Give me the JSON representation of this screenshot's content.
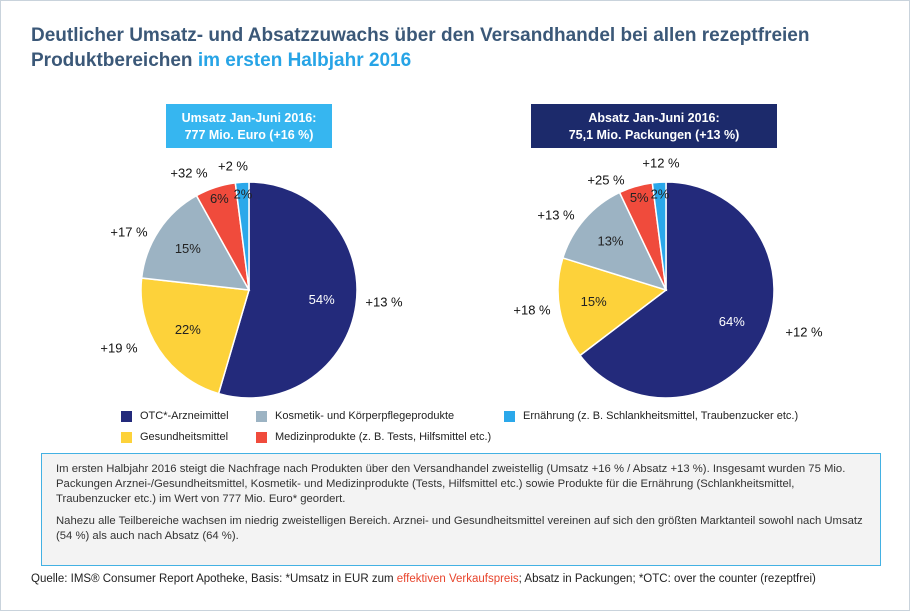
{
  "header": {
    "title": "Deutlicher Umsatz- und Absatzzuwachs über den Versandhandel bei allen rezeptfreien Produktbereichen",
    "title_highlight": "im ersten Halbjahr 2016"
  },
  "chart_data": [
    {
      "type": "pie",
      "title": "Umsatz Jan-Juni 2016:",
      "subtitle": "777 Mio. Euro (+16 %)",
      "categories": [
        "OTC*-Arzneimittel",
        "Gesundheitsmittel",
        "Kosmetik- und Körperpflegeprodukte",
        "Medizinprodukte (z. B. Tests, Hilfsmittel etc.)",
        "Ernährung (z. B. Schlankheitsmittel, Traubenzucker etc.)"
      ],
      "values": [
        54,
        22,
        15,
        6,
        2
      ],
      "value_labels": [
        "54%",
        "22%",
        "15%",
        "6%",
        "2%"
      ],
      "annotations": [
        "+13 %",
        "+19 %",
        "+17 %",
        "+32 %",
        "+2 %"
      ],
      "colors": [
        "#232a7b",
        "#fdd23a",
        "#9cb3c3",
        "#f04b3c",
        "#2ba8ea"
      ],
      "header_color": "#36b6f0"
    },
    {
      "type": "pie",
      "title": "Absatz Jan-Juni 2016:",
      "subtitle": "75,1 Mio. Packungen (+13 %)",
      "categories": [
        "OTC*-Arzneimittel",
        "Gesundheitsmittel",
        "Kosmetik- und Körperpflegeprodukte",
        "Medizinprodukte (z. B. Tests, Hilfsmittel etc.)",
        "Ernährung (z. B. Schlankheitsmittel, Traubenzucker etc.)"
      ],
      "values": [
        64,
        15,
        13,
        5,
        2
      ],
      "value_labels": [
        "64%",
        "15%",
        "13%",
        "5%",
        "2%"
      ],
      "annotations": [
        "+12 %",
        "+18 %",
        "+13 %",
        "+25 %",
        "+12 %"
      ],
      "colors": [
        "#232a7b",
        "#fdd23a",
        "#9cb3c3",
        "#f04b3c",
        "#2ba8ea"
      ],
      "header_color": "#1c2a6b"
    }
  ],
  "note": {
    "paragraphs": [
      "Im ersten Halbjahr 2016 steigt die Nachfrage nach Produkten über den Versandhandel zweistellig (Umsatz +16 % / Absatz +13 %). Insgesamt wurden 75 Mio. Packungen Arznei-/Gesundheitsmittel, Kosmetik- und Medizinprodukte (Tests, Hilfsmittel etc.) sowie Produkte für die Ernährung (Schlankheitsmittel, Traubenzucker etc.) im Wert von 777 Mio. Euro* geordert.",
      "Nahezu alle Teilbereiche wachsen im niedrig zweistelligen Bereich. Arznei- und Gesundheitsmittel vereinen auf sich den größten Marktanteil sowohl nach Umsatz (54 %) als auch nach Absatz (64 %)."
    ]
  },
  "source": {
    "part1": "Quelle: IMS® Consumer Report Apotheke, Basis: *Umsatz in EUR zum ",
    "highlight": "effektiven Verkaufspreis",
    "part2": "; Absatz in Packungen; *OTC: over the counter (rezeptfrei)"
  }
}
